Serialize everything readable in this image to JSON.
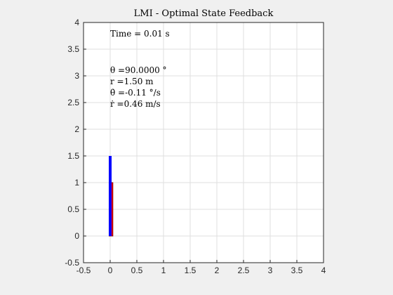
{
  "chart_data": {
    "type": "line",
    "title": "LMI - Optimal State Feedback",
    "xlabel": "",
    "ylabel": "",
    "xlim": [
      -0.5,
      4
    ],
    "ylim": [
      -0.5,
      4
    ],
    "grid": true,
    "x_ticks": [
      -0.5,
      0,
      0.5,
      1,
      1.5,
      2,
      2.5,
      3,
      3.5,
      4
    ],
    "y_ticks": [
      -0.5,
      0,
      0.5,
      1,
      1.5,
      2,
      2.5,
      3,
      3.5,
      4
    ],
    "x_tick_labels": [
      "-0.5",
      "0",
      "0.5",
      "1",
      "1.5",
      "2",
      "2.5",
      "3",
      "3.5",
      "4"
    ],
    "y_tick_labels": [
      "-0.5",
      "0",
      "0.5",
      "1",
      "1.5",
      "2",
      "2.5",
      "3",
      "3.5",
      "4"
    ],
    "annotations": {
      "time": "Time = 0.01 s",
      "theta": "θ =90.0000 °",
      "r": "r =1.50  m",
      "theta_dot": "θ̇ =-0.11 °/s",
      "r_dot": "ṙ =0.46 m/s"
    },
    "bodies": {
      "base": {
        "x_min": -0.02,
        "x_max": 0.05,
        "y_min": 0,
        "y_max": 1,
        "color": "#ff0000"
      },
      "rod": {
        "x": 0,
        "y_min": 0,
        "y_max": 1.5,
        "color": "#0000ff"
      },
      "base_edge_color": "#7f0000"
    },
    "colors": {
      "axes_background": "#ffffff",
      "figure_background": "#f0f0f0",
      "grid": "#dfdfdf",
      "axis": "#262626"
    }
  }
}
